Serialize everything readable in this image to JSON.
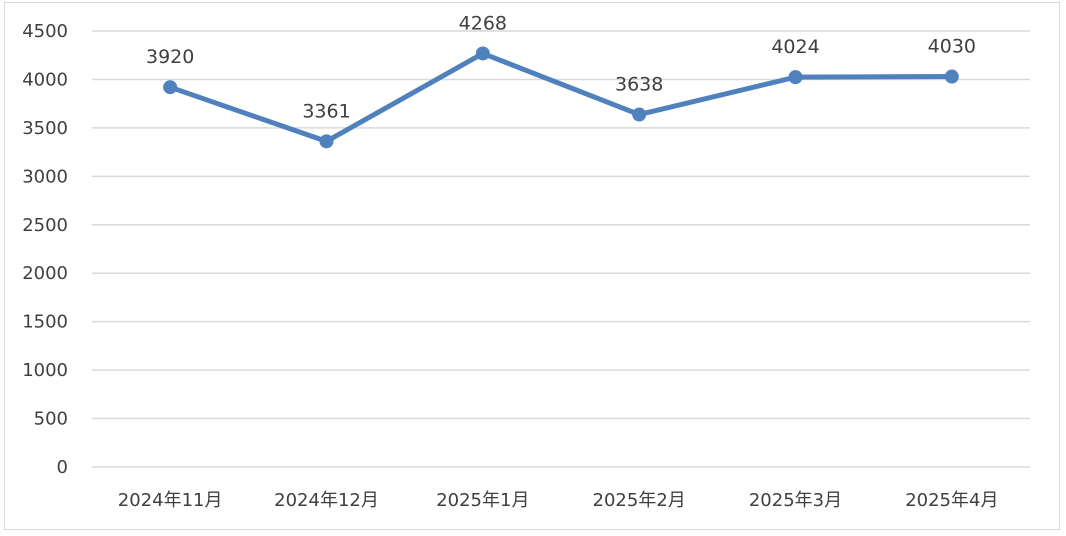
{
  "chart_data": {
    "type": "line",
    "title": "",
    "xlabel": "",
    "ylabel": "",
    "categories": [
      "2024年11月",
      "2024年12月",
      "2025年1月",
      "2025年2月",
      "2025年3月",
      "2025年4月"
    ],
    "series": [
      {
        "values": [
          3920,
          3361,
          4268,
          3638,
          4024,
          4030
        ]
      }
    ],
    "ylim": [
      0,
      4500
    ],
    "yticks": [
      0,
      500,
      1000,
      1500,
      2000,
      2500,
      3000,
      3500,
      4000,
      4500
    ],
    "data_labels": true,
    "grid": "horizontal",
    "legend": "none",
    "colors": {
      "line": "#4f81bd",
      "grid": "#d9d9d9",
      "text": "#404040"
    }
  }
}
